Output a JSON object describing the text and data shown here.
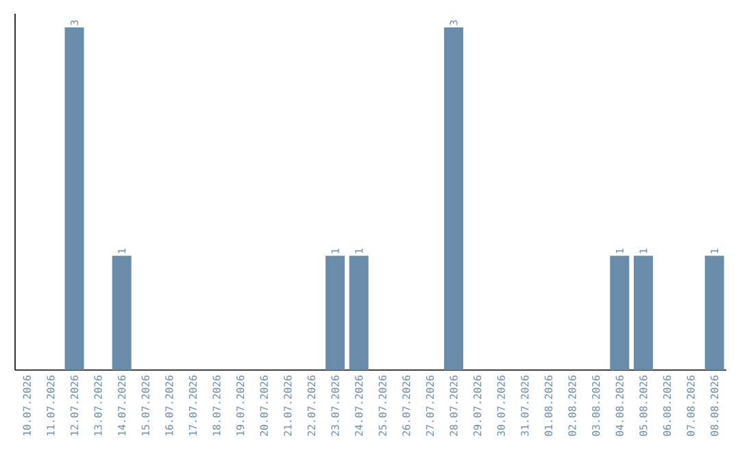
{
  "chart_data": {
    "type": "bar",
    "categories": [
      "10.07.2026",
      "11.07.2026",
      "12.07.2026",
      "13.07.2026",
      "14.07.2026",
      "15.07.2026",
      "16.07.2026",
      "17.07.2026",
      "18.07.2026",
      "19.07.2026",
      "20.07.2026",
      "21.07.2026",
      "22.07.2026",
      "23.07.2026",
      "24.07.2026",
      "25.07.2026",
      "26.07.2026",
      "27.07.2026",
      "28.07.2026",
      "29.07.2026",
      "30.07.2026",
      "31.07.2026",
      "01.08.2026",
      "02.08.2026",
      "03.08.2026",
      "04.08.2026",
      "05.08.2026",
      "06.08.2026",
      "07.08.2026",
      "08.08.2026"
    ],
    "values": [
      0,
      0,
      3,
      0,
      1,
      0,
      0,
      0,
      0,
      0,
      0,
      0,
      0,
      1,
      1,
      0,
      0,
      0,
      3,
      0,
      0,
      0,
      0,
      0,
      0,
      1,
      1,
      0,
      0,
      1
    ],
    "value_labels": [
      null,
      null,
      "3",
      null,
      "1",
      null,
      null,
      null,
      null,
      null,
      null,
      null,
      null,
      "1",
      "1",
      null,
      null,
      null,
      "3",
      null,
      null,
      null,
      null,
      null,
      null,
      "1",
      "1",
      null,
      null,
      "1"
    ],
    "color": "#6a8cab",
    "ylim": [
      0,
      3.12
    ],
    "grid": false,
    "tick_labels": "x"
  }
}
